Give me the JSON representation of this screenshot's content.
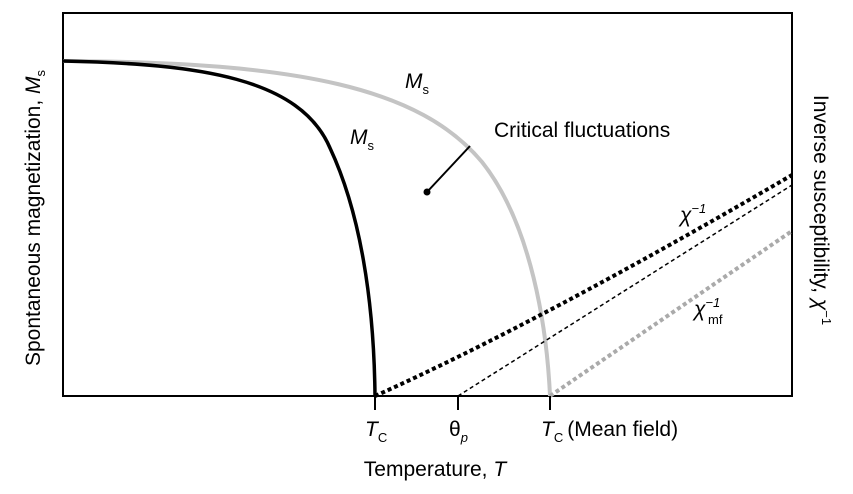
{
  "axes": {
    "y_left": {
      "text": "Spontaneous magnetization, ",
      "symbol": "M",
      "subscript": "s"
    },
    "y_right": {
      "text": "Inverse susceptibility, ",
      "symbol": "χ",
      "superscript": "−1"
    },
    "x": {
      "text": "Temperature, ",
      "symbol": "T"
    }
  },
  "ticks": [
    {
      "symbol": "T",
      "subscript": "C"
    },
    {
      "symbol": "θ",
      "subscript": "p"
    },
    {
      "symbol": "T",
      "subscript": "C",
      "note": "(Mean field)"
    }
  ],
  "curve_labels": {
    "ms_mean_field": {
      "symbol": "M",
      "subscript": "s"
    },
    "ms_real": {
      "symbol": "M",
      "subscript": "s"
    },
    "chi": {
      "symbol": "χ",
      "superscript": "−1"
    },
    "chi_mf": {
      "symbol": "χ",
      "superscript": "−1",
      "subscript": "mf"
    },
    "annotation": "Critical fluctuations"
  }
}
